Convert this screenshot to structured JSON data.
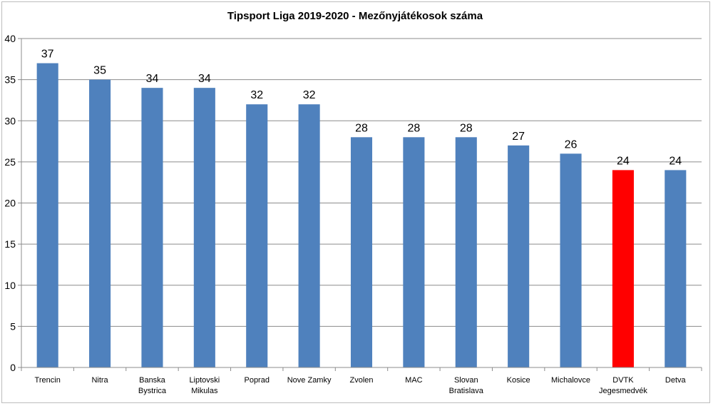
{
  "chart_data": {
    "type": "bar",
    "title": "Tipsport Liga 2019-2020  - Mezőnyjátékosok száma",
    "xlabel": "",
    "ylabel": "",
    "ylim": [
      0,
      40
    ],
    "yticks": [
      0,
      5,
      10,
      15,
      20,
      25,
      30,
      35,
      40
    ],
    "grid": true,
    "legend": "none",
    "categories": [
      [
        "Trencin"
      ],
      [
        "Nitra"
      ],
      [
        "Banska",
        "Bystrica"
      ],
      [
        "Liptovski",
        "Mikulas"
      ],
      [
        "Poprad"
      ],
      [
        "Nove Zamky"
      ],
      [
        "Zvolen"
      ],
      [
        "MAC"
      ],
      [
        "Slovan",
        "Bratislava"
      ],
      [
        "Kosice"
      ],
      [
        "Michalovce"
      ],
      [
        "DVTK",
        "Jegesmedvék"
      ],
      [
        "Detva"
      ]
    ],
    "values": [
      37,
      35,
      34,
      34,
      32,
      32,
      28,
      28,
      28,
      27,
      26,
      24,
      24
    ],
    "colors": [
      "#4f81bd",
      "#4f81bd",
      "#4f81bd",
      "#4f81bd",
      "#4f81bd",
      "#4f81bd",
      "#4f81bd",
      "#4f81bd",
      "#4f81bd",
      "#4f81bd",
      "#4f81bd",
      "#ff0000",
      "#4f81bd"
    ],
    "gridline_color": "#8c8c8c",
    "axis_color": "#8c8c8c"
  }
}
